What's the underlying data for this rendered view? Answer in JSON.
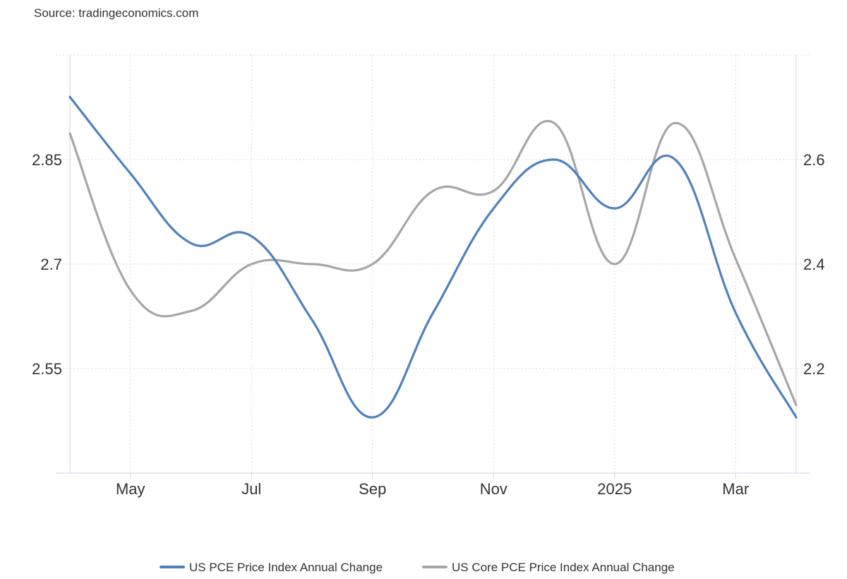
{
  "source": "Source: tradingeconomics.com",
  "chart_data": {
    "type": "line",
    "title": "",
    "xlabel": "",
    "ylabel": "",
    "x_tick_labels": [
      "May",
      "Jul",
      "Sep",
      "Nov",
      "2025",
      "Mar"
    ],
    "x_tick_months": [
      "2024-05",
      "2024-07",
      "2024-09",
      "2024-11",
      "2025-01",
      "2025-03"
    ],
    "left_axis": {
      "ticks": [
        "2.55",
        "2.7",
        "2.85"
      ],
      "range": [
        2.4,
        3.0
      ]
    },
    "right_axis": {
      "ticks": [
        "2.2",
        "2.4",
        "2.6"
      ],
      "range": [
        2.0,
        2.8
      ]
    },
    "grid": true,
    "legend_position": "bottom",
    "series": [
      {
        "name": "US PCE Price Index Annual Change",
        "axis": "left",
        "color": "#4f81bd",
        "x": [
          "2024-04",
          "2024-05",
          "2024-06",
          "2024-07",
          "2024-08",
          "2024-09",
          "2024-10",
          "2024-11",
          "2024-12",
          "2025-01",
          "2025-02",
          "2025-03",
          "2025-04"
        ],
        "values": [
          2.94,
          2.83,
          2.73,
          2.74,
          2.62,
          2.48,
          2.63,
          2.78,
          2.85,
          2.78,
          2.85,
          2.63,
          2.48
        ]
      },
      {
        "name": "US Core PCE Price Index Annual Change",
        "axis": "right",
        "color": "#a6a6a6",
        "x": [
          "2024-04",
          "2024-05",
          "2024-06",
          "2024-07",
          "2024-08",
          "2024-09",
          "2024-10",
          "2024-11",
          "2024-12",
          "2025-01",
          "2025-02",
          "2025-03",
          "2025-04"
        ],
        "values": [
          2.65,
          2.35,
          2.31,
          2.4,
          2.4,
          2.4,
          2.54,
          2.54,
          2.67,
          2.4,
          2.67,
          2.41,
          2.13
        ]
      }
    ]
  }
}
